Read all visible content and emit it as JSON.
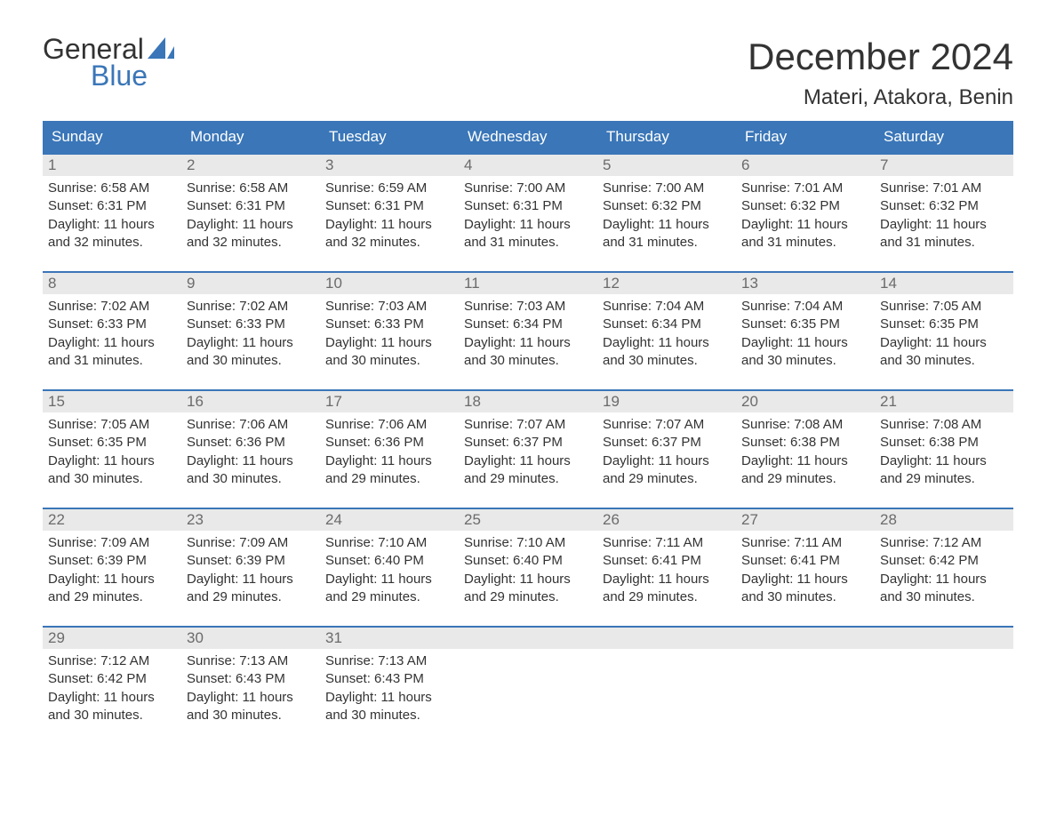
{
  "logo": {
    "top": "General",
    "bottom": "Blue",
    "accent_color": "#3a76b8"
  },
  "title": "December 2024",
  "location": "Materi, Atakora, Benin",
  "colors": {
    "header_bg": "#3a76b8",
    "header_text": "#ffffff",
    "date_bar_bg": "#e9e9e9",
    "date_bar_text": "#6b6b6b",
    "body_text": "#333333",
    "week_border": "#3a76b8",
    "page_bg": "#ffffff"
  },
  "typography": {
    "title_fontsize_pt": 32,
    "location_fontsize_pt": 18,
    "day_header_fontsize_pt": 13,
    "date_fontsize_pt": 13,
    "body_fontsize_pt": 11
  },
  "day_names": [
    "Sunday",
    "Monday",
    "Tuesday",
    "Wednesday",
    "Thursday",
    "Friday",
    "Saturday"
  ],
  "labels": {
    "sunrise": "Sunrise:",
    "sunset": "Sunset:",
    "daylight": "Daylight:"
  },
  "weeks": [
    [
      {
        "date": "1",
        "sunrise": "6:58 AM",
        "sunset": "6:31 PM",
        "daylight_l1": "11 hours",
        "daylight_l2": "and 32 minutes."
      },
      {
        "date": "2",
        "sunrise": "6:58 AM",
        "sunset": "6:31 PM",
        "daylight_l1": "11 hours",
        "daylight_l2": "and 32 minutes."
      },
      {
        "date": "3",
        "sunrise": "6:59 AM",
        "sunset": "6:31 PM",
        "daylight_l1": "11 hours",
        "daylight_l2": "and 32 minutes."
      },
      {
        "date": "4",
        "sunrise": "7:00 AM",
        "sunset": "6:31 PM",
        "daylight_l1": "11 hours",
        "daylight_l2": "and 31 minutes."
      },
      {
        "date": "5",
        "sunrise": "7:00 AM",
        "sunset": "6:32 PM",
        "daylight_l1": "11 hours",
        "daylight_l2": "and 31 minutes."
      },
      {
        "date": "6",
        "sunrise": "7:01 AM",
        "sunset": "6:32 PM",
        "daylight_l1": "11 hours",
        "daylight_l2": "and 31 minutes."
      },
      {
        "date": "7",
        "sunrise": "7:01 AM",
        "sunset": "6:32 PM",
        "daylight_l1": "11 hours",
        "daylight_l2": "and 31 minutes."
      }
    ],
    [
      {
        "date": "8",
        "sunrise": "7:02 AM",
        "sunset": "6:33 PM",
        "daylight_l1": "11 hours",
        "daylight_l2": "and 31 minutes."
      },
      {
        "date": "9",
        "sunrise": "7:02 AM",
        "sunset": "6:33 PM",
        "daylight_l1": "11 hours",
        "daylight_l2": "and 30 minutes."
      },
      {
        "date": "10",
        "sunrise": "7:03 AM",
        "sunset": "6:33 PM",
        "daylight_l1": "11 hours",
        "daylight_l2": "and 30 minutes."
      },
      {
        "date": "11",
        "sunrise": "7:03 AM",
        "sunset": "6:34 PM",
        "daylight_l1": "11 hours",
        "daylight_l2": "and 30 minutes."
      },
      {
        "date": "12",
        "sunrise": "7:04 AM",
        "sunset": "6:34 PM",
        "daylight_l1": "11 hours",
        "daylight_l2": "and 30 minutes."
      },
      {
        "date": "13",
        "sunrise": "7:04 AM",
        "sunset": "6:35 PM",
        "daylight_l1": "11 hours",
        "daylight_l2": "and 30 minutes."
      },
      {
        "date": "14",
        "sunrise": "7:05 AM",
        "sunset": "6:35 PM",
        "daylight_l1": "11 hours",
        "daylight_l2": "and 30 minutes."
      }
    ],
    [
      {
        "date": "15",
        "sunrise": "7:05 AM",
        "sunset": "6:35 PM",
        "daylight_l1": "11 hours",
        "daylight_l2": "and 30 minutes."
      },
      {
        "date": "16",
        "sunrise": "7:06 AM",
        "sunset": "6:36 PM",
        "daylight_l1": "11 hours",
        "daylight_l2": "and 30 minutes."
      },
      {
        "date": "17",
        "sunrise": "7:06 AM",
        "sunset": "6:36 PM",
        "daylight_l1": "11 hours",
        "daylight_l2": "and 29 minutes."
      },
      {
        "date": "18",
        "sunrise": "7:07 AM",
        "sunset": "6:37 PM",
        "daylight_l1": "11 hours",
        "daylight_l2": "and 29 minutes."
      },
      {
        "date": "19",
        "sunrise": "7:07 AM",
        "sunset": "6:37 PM",
        "daylight_l1": "11 hours",
        "daylight_l2": "and 29 minutes."
      },
      {
        "date": "20",
        "sunrise": "7:08 AM",
        "sunset": "6:38 PM",
        "daylight_l1": "11 hours",
        "daylight_l2": "and 29 minutes."
      },
      {
        "date": "21",
        "sunrise": "7:08 AM",
        "sunset": "6:38 PM",
        "daylight_l1": "11 hours",
        "daylight_l2": "and 29 minutes."
      }
    ],
    [
      {
        "date": "22",
        "sunrise": "7:09 AM",
        "sunset": "6:39 PM",
        "daylight_l1": "11 hours",
        "daylight_l2": "and 29 minutes."
      },
      {
        "date": "23",
        "sunrise": "7:09 AM",
        "sunset": "6:39 PM",
        "daylight_l1": "11 hours",
        "daylight_l2": "and 29 minutes."
      },
      {
        "date": "24",
        "sunrise": "7:10 AM",
        "sunset": "6:40 PM",
        "daylight_l1": "11 hours",
        "daylight_l2": "and 29 minutes."
      },
      {
        "date": "25",
        "sunrise": "7:10 AM",
        "sunset": "6:40 PM",
        "daylight_l1": "11 hours",
        "daylight_l2": "and 29 minutes."
      },
      {
        "date": "26",
        "sunrise": "7:11 AM",
        "sunset": "6:41 PM",
        "daylight_l1": "11 hours",
        "daylight_l2": "and 29 minutes."
      },
      {
        "date": "27",
        "sunrise": "7:11 AM",
        "sunset": "6:41 PM",
        "daylight_l1": "11 hours",
        "daylight_l2": "and 30 minutes."
      },
      {
        "date": "28",
        "sunrise": "7:12 AM",
        "sunset": "6:42 PM",
        "daylight_l1": "11 hours",
        "daylight_l2": "and 30 minutes."
      }
    ],
    [
      {
        "date": "29",
        "sunrise": "7:12 AM",
        "sunset": "6:42 PM",
        "daylight_l1": "11 hours",
        "daylight_l2": "and 30 minutes."
      },
      {
        "date": "30",
        "sunrise": "7:13 AM",
        "sunset": "6:43 PM",
        "daylight_l1": "11 hours",
        "daylight_l2": "and 30 minutes."
      },
      {
        "date": "31",
        "sunrise": "7:13 AM",
        "sunset": "6:43 PM",
        "daylight_l1": "11 hours",
        "daylight_l2": "and 30 minutes."
      },
      {
        "date": "",
        "sunrise": "",
        "sunset": "",
        "daylight_l1": "",
        "daylight_l2": ""
      },
      {
        "date": "",
        "sunrise": "",
        "sunset": "",
        "daylight_l1": "",
        "daylight_l2": ""
      },
      {
        "date": "",
        "sunrise": "",
        "sunset": "",
        "daylight_l1": "",
        "daylight_l2": ""
      },
      {
        "date": "",
        "sunrise": "",
        "sunset": "",
        "daylight_l1": "",
        "daylight_l2": ""
      }
    ]
  ]
}
